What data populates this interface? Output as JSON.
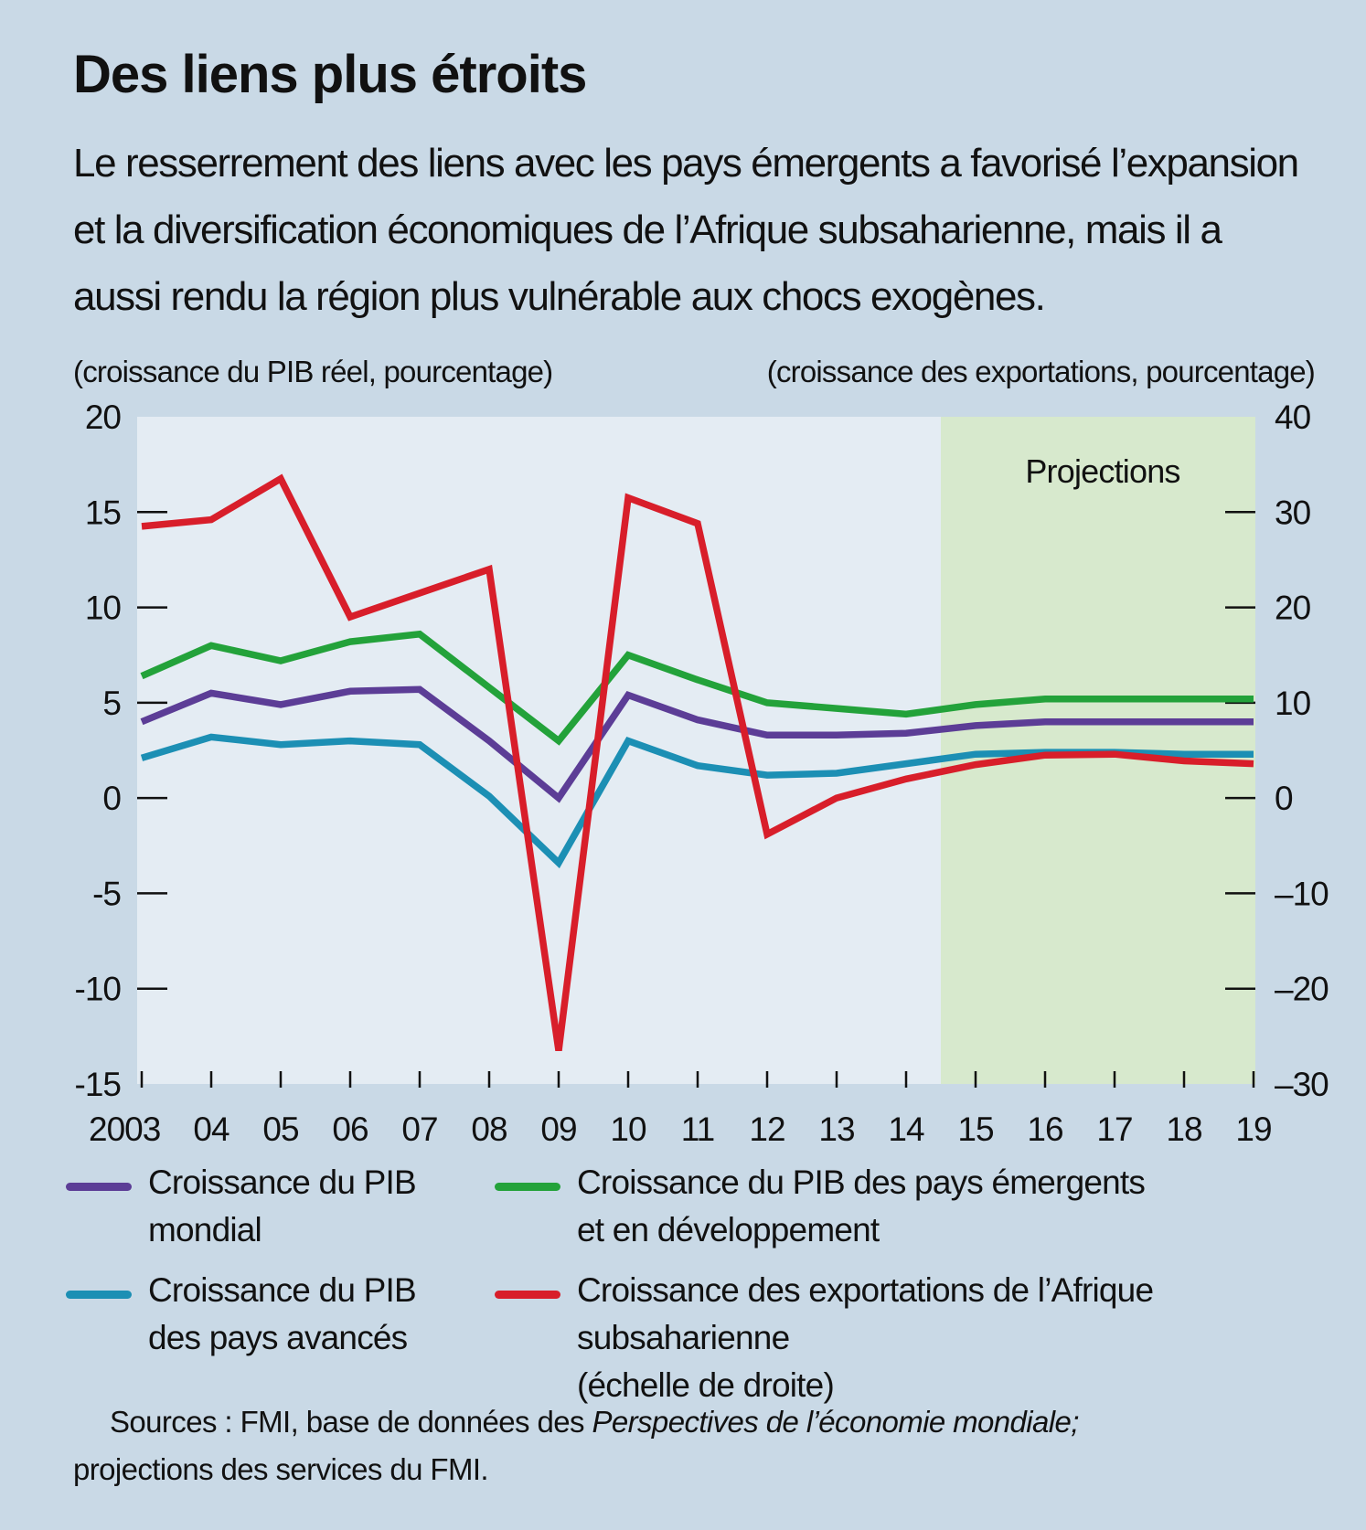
{
  "title": "Des liens plus étroits",
  "subtitle": "Le resserrement des liens avec les pays émergents a favorisé l’expansion et la diversification économiques de l’Afrique subsaharienne, mais il a aussi rendu la région plus vulnérable aux chocs exogènes.",
  "colors": {
    "background": "#c9d9e6",
    "plot_area": "#e4ecf3",
    "projection_area": "#d7e9cd",
    "purple": "#5c3d96",
    "green": "#23a23a",
    "blue": "#1c8fb4",
    "red": "#d81e2a"
  },
  "chart_data": {
    "type": "line",
    "left_axis_label": "(croissance du PIB réel, pourcentage)",
    "right_axis_label": "(croissance des exportations, pourcentage)",
    "x": [
      2003,
      2004,
      2005,
      2006,
      2007,
      2008,
      2009,
      2010,
      2011,
      2012,
      2013,
      2014,
      2015,
      2016,
      2017,
      2018,
      2019
    ],
    "x_tick_labels": [
      "2003",
      "04",
      "05",
      "06",
      "07",
      "08",
      "09",
      "10",
      "11",
      "12",
      "13",
      "14",
      "15",
      "16",
      "17",
      "18",
      "19"
    ],
    "ylim_left": [
      -15,
      20
    ],
    "y_ticks_left": [
      "20",
      "15",
      "10",
      "5",
      "0",
      "-5",
      "-10",
      "-15"
    ],
    "ylim_right": [
      -30,
      40
    ],
    "y_ticks_right": [
      "40",
      "30",
      "20",
      "10",
      "0",
      "–10",
      "–20",
      "–30"
    ],
    "projection_start": 2014.5,
    "projection_label": "Projections",
    "series": [
      {
        "name": "Croissance du PIB mondial",
        "axis": "left",
        "color": "#5c3d96",
        "values": [
          4.0,
          5.5,
          4.9,
          5.6,
          5.7,
          3.0,
          0.0,
          5.4,
          4.1,
          3.3,
          3.3,
          3.4,
          3.8,
          4.0,
          4.0,
          4.0,
          4.0
        ]
      },
      {
        "name": "Croissance du PIB des pays émergents et en développement",
        "axis": "left",
        "color": "#23a23a",
        "values": [
          6.4,
          8.0,
          7.2,
          8.2,
          8.6,
          5.8,
          3.0,
          7.5,
          6.2,
          5.0,
          4.7,
          4.4,
          4.9,
          5.2,
          5.2,
          5.2,
          5.2
        ]
      },
      {
        "name": "Croissance du PIB des pays avancés",
        "axis": "left",
        "color": "#1c8fb4",
        "values": [
          2.1,
          3.2,
          2.8,
          3.0,
          2.8,
          0.1,
          -3.4,
          3.0,
          1.7,
          1.2,
          1.3,
          1.8,
          2.3,
          2.4,
          2.4,
          2.3,
          2.3
        ]
      },
      {
        "name": "Croissance des exportations de l’Afrique subsaharienne (échelle de droite)",
        "axis": "right",
        "color": "#d81e2a",
        "values": [
          28.5,
          29.2,
          33.5,
          19.0,
          21.5,
          24.0,
          -26.5,
          31.5,
          28.8,
          -3.8,
          0.0,
          2.0,
          3.5,
          4.5,
          4.6,
          3.9,
          3.6
        ]
      }
    ]
  },
  "legend": {
    "purple": [
      "Croissance du PIB",
      "mondial"
    ],
    "green": [
      "Croissance du PIB des pays émergents",
      "et en développement"
    ],
    "blue": [
      "Croissance du PIB",
      "des pays avancés"
    ],
    "red": [
      "Croissance des exportations de l’Afrique subsaharienne",
      "(échelle de droite)"
    ]
  },
  "sources": {
    "prefix": "Sources : FMI, base de données des ",
    "italic": "Perspectives de l’économie mondiale;",
    "suffix": "projections des services du FMI."
  }
}
